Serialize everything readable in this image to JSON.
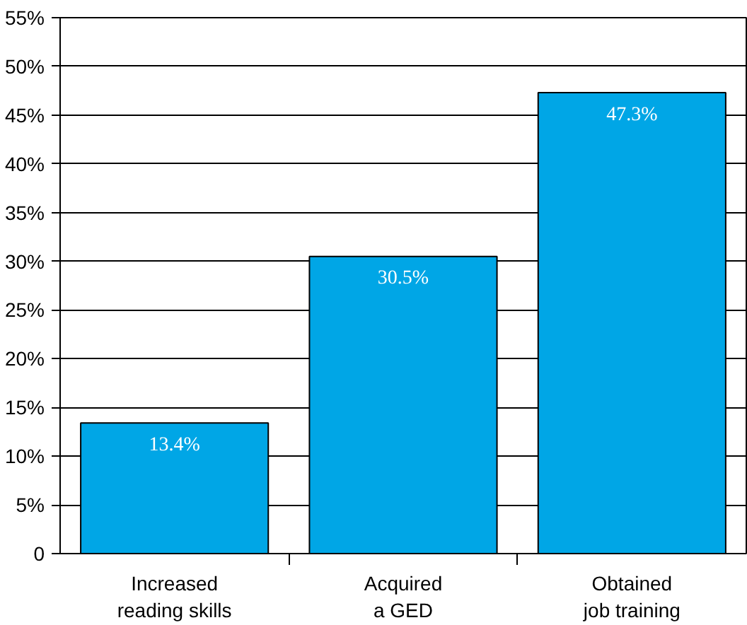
{
  "chart_data": {
    "type": "bar",
    "categories": [
      "Increased\nreading skills",
      "Acquired\na GED",
      "Obtained\njob training"
    ],
    "values": [
      13.4,
      30.5,
      47.3
    ],
    "value_labels": [
      "13.4%",
      "30.5%",
      "47.3%"
    ],
    "color": "#00a6e6",
    "ylim": [
      0,
      55
    ],
    "yticks": [
      0,
      {
        "value": 5,
        "label": "5%"
      },
      {
        "value": 10,
        "label": "10%"
      },
      {
        "value": 15,
        "label": "15%"
      },
      {
        "value": 20,
        "label": "20%"
      },
      {
        "value": 25,
        "label": "25%"
      },
      {
        "value": 30,
        "label": "30%"
      },
      {
        "value": 35,
        "label": "35%"
      },
      {
        "value": 40,
        "label": "40%"
      },
      {
        "value": 45,
        "label": "45%"
      },
      {
        "value": 50,
        "label": "50%"
      },
      {
        "value": 55,
        "label": "55%"
      }
    ],
    "grid": "y"
  }
}
